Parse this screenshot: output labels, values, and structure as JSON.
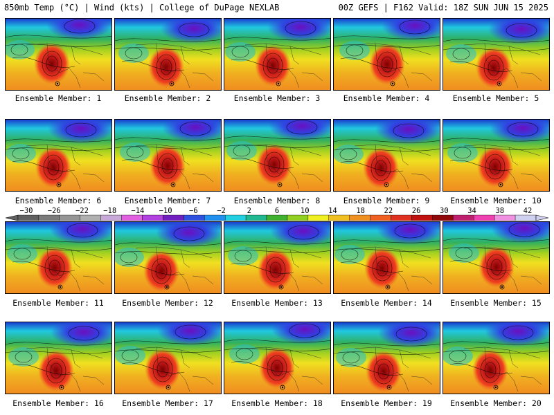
{
  "header": {
    "left": "850mb Temp (°C) | Wind (kts) | College of DuPage NEXLAB",
    "right": "00Z GEFS | F162 Valid: 18Z SUN JUN 15 2025"
  },
  "members": [
    "Ensemble Member: 1",
    "Ensemble Member: 2",
    "Ensemble Member: 3",
    "Ensemble Member: 4",
    "Ensemble Member: 5",
    "Ensemble Member: 6",
    "Ensemble Member: 7",
    "Ensemble Member: 8",
    "Ensemble Member: 9",
    "Ensemble Member: 10",
    "Ensemble Member: 11",
    "Ensemble Member: 12",
    "Ensemble Member: 13",
    "Ensemble Member: 14",
    "Ensemble Member: 15",
    "Ensemble Member: 16",
    "Ensemble Member: 17",
    "Ensemble Member: 18",
    "Ensemble Member: 19",
    "Ensemble Member: 20"
  ],
  "colorbar": {
    "labels": [
      "−30",
      "−26",
      "−22",
      "−18",
      "−14",
      "−10",
      "−6",
      "−2",
      "2",
      "6",
      "10",
      "14",
      "18",
      "22",
      "26",
      "30",
      "34",
      "38",
      "42"
    ],
    "colors": [
      "#606060",
      "#7a7a7a",
      "#959595",
      "#b0b0b0",
      "#c8a8d8",
      "#e060e0",
      "#b040e0",
      "#7020c0",
      "#3050e0",
      "#2090f0",
      "#20d0e0",
      "#20b890",
      "#40b030",
      "#90d020",
      "#f0f020",
      "#f0c020",
      "#f09020",
      "#f06020",
      "#e03020",
      "#c01010",
      "#900808",
      "#c02070",
      "#f040b0",
      "#f090e0",
      "#d0d0f0"
    ]
  }
}
